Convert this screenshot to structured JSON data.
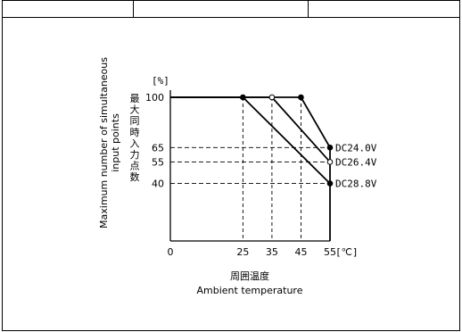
{
  "chart_data": {
    "type": "line",
    "title": "",
    "xlabel_jp": "周囲温度",
    "xlabel_en": "Ambient temperature",
    "ylabel_en_line1": "Maximum number of simultaneous",
    "ylabel_en_line2": "input points",
    "ylabel_jp": "最大同時入力点数",
    "yunit": "[%]",
    "xunit": "[℃]",
    "xlim": [
      0,
      55
    ],
    "ylim": [
      0,
      100
    ],
    "x_ticks": [
      {
        "value": 0,
        "label": "0"
      },
      {
        "value": 25,
        "label": "25"
      },
      {
        "value": 35,
        "label": "35"
      },
      {
        "value": 45,
        "label": "45"
      },
      {
        "value": 55,
        "label": "55"
      }
    ],
    "y_ticks": [
      {
        "value": 40,
        "label": "40"
      },
      {
        "value": 55,
        "label": "55"
      },
      {
        "value": 65,
        "label": "65"
      },
      {
        "value": 100,
        "label": "100"
      }
    ],
    "series": [
      {
        "name": "DC24.0V",
        "marker": "filled",
        "points": [
          [
            0,
            100
          ],
          [
            45,
            100
          ],
          [
            55,
            65
          ]
        ]
      },
      {
        "name": "DC26.4V",
        "marker": "open",
        "points": [
          [
            0,
            100
          ],
          [
            35,
            100
          ],
          [
            55,
            55
          ]
        ]
      },
      {
        "name": "DC28.8V",
        "marker": "filled",
        "points": [
          [
            0,
            100
          ],
          [
            25,
            100
          ],
          [
            55,
            40
          ]
        ]
      }
    ],
    "grid": false,
    "guide_lines": true
  }
}
